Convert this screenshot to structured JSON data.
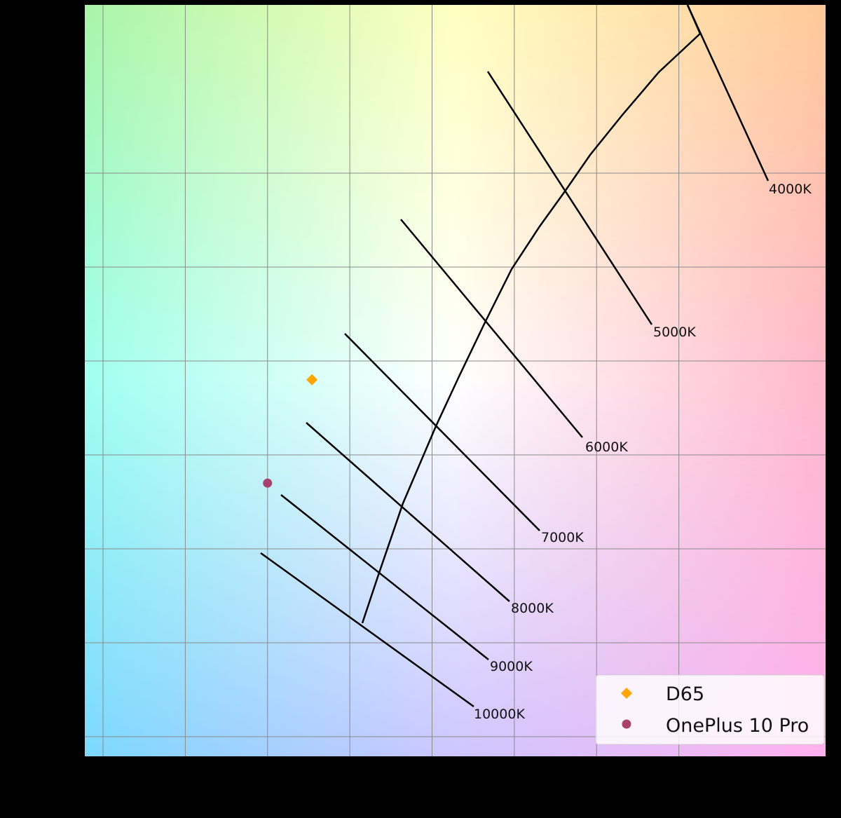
{
  "chart_data": {
    "type": "scatter",
    "title": "",
    "xlabel": "",
    "ylabel": "",
    "grid": true,
    "legend_position": "bottom-right",
    "background_colors": {
      "top_left": "#a8f5a8",
      "top_center": "#ffffc0",
      "top_right": "#ffc898",
      "mid_left": "#a0fff0",
      "center": "#ffffff",
      "mid_right": "#ffb8cc",
      "bottom_left": "#7cd8ff",
      "bottom_center": "#cdc6ff",
      "bottom_right": "#ffb0ee"
    },
    "series": [
      {
        "name": "D65",
        "marker": "diamond",
        "color": "#ffa500",
        "points": [
          [
            0.3127,
            0.329
          ]
        ]
      },
      {
        "name": "OnePlus 10 Pro",
        "marker": "circle",
        "color": "#a8416c",
        "points": [
          [
            0.31,
            0.3235
          ]
        ]
      }
    ],
    "isotherms": [
      {
        "label": "4000K"
      },
      {
        "label": "5000K"
      },
      {
        "label": "6000K"
      },
      {
        "label": "7000K"
      },
      {
        "label": "8000K"
      },
      {
        "label": "9000K"
      },
      {
        "label": "10000K"
      }
    ]
  }
}
